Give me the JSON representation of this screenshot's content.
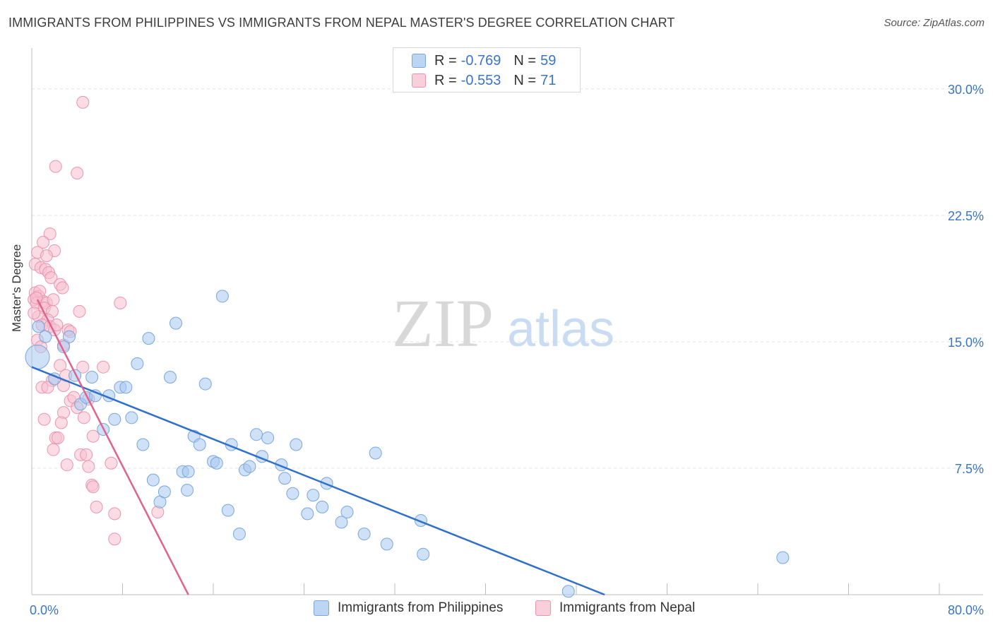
{
  "title": "IMMIGRANTS FROM PHILIPPINES VS IMMIGRANTS FROM NEPAL MASTER'S DEGREE CORRELATION CHART",
  "source": "Source: ZipAtlas.com",
  "watermark": {
    "zip": "ZIP",
    "atlas": "atlas"
  },
  "legend": {
    "series1": {
      "r_label": "R =",
      "r_value": "-0.769",
      "n_label": "N =",
      "n_value": "59"
    },
    "series2": {
      "r_label": "R =",
      "r_value": "-0.553",
      "n_label": "N =",
      "n_value": "71"
    }
  },
  "colors": {
    "blue_fill": "#a8c8f0",
    "blue_stroke": "#7aa6dc",
    "blue_line": "#2f6fcd",
    "pink_fill": "#f7bfd0",
    "pink_stroke": "#ec93b0",
    "pink_line": "#e0628f",
    "tick_text": "#3a74c9",
    "grid": "#e3e3e3"
  },
  "chart_data": {
    "type": "scatter",
    "title": "IMMIGRANTS FROM PHILIPPINES VS IMMIGRANTS FROM NEPAL MASTER'S DEGREE CORRELATION CHART",
    "xlabel": "",
    "ylabel": "Master's Degree",
    "xlim": [
      0,
      80
    ],
    "ylim": [
      0,
      32
    ],
    "x_tick_labels": [
      "0.0%",
      "80.0%"
    ],
    "y_ticks": [
      7.5,
      15.0,
      22.5,
      30.0
    ],
    "y_tick_labels": [
      "7.5%",
      "15.0%",
      "22.5%",
      "30.0%"
    ],
    "series": [
      {
        "name": "Immigrants from Philippines",
        "color": "blue",
        "points": [
          [
            0.5,
            14.1
          ],
          [
            0.6,
            15.9
          ],
          [
            1.2,
            15.3
          ],
          [
            2.0,
            12.8
          ],
          [
            3.3,
            15.3
          ],
          [
            2.8,
            14.7
          ],
          [
            3.8,
            13.0
          ],
          [
            4.3,
            11.3
          ],
          [
            4.8,
            11.7
          ],
          [
            5.3,
            12.9
          ],
          [
            5.6,
            11.8
          ],
          [
            6.3,
            9.8
          ],
          [
            6.8,
            11.8
          ],
          [
            7.3,
            10.4
          ],
          [
            7.8,
            12.3
          ],
          [
            8.3,
            12.3
          ],
          [
            8.8,
            10.5
          ],
          [
            9.3,
            13.7
          ],
          [
            9.8,
            8.9
          ],
          [
            10.3,
            15.2
          ],
          [
            10.7,
            6.8
          ],
          [
            11.3,
            5.5
          ],
          [
            11.7,
            6.1
          ],
          [
            12.2,
            12.9
          ],
          [
            12.7,
            16.1
          ],
          [
            13.3,
            7.3
          ],
          [
            13.8,
            7.3
          ],
          [
            14.3,
            9.4
          ],
          [
            14.8,
            8.9
          ],
          [
            15.3,
            12.5
          ],
          [
            16.0,
            7.9
          ],
          [
            16.3,
            7.8
          ],
          [
            16.8,
            17.7
          ],
          [
            17.3,
            5.0
          ],
          [
            17.6,
            8.9
          ],
          [
            18.3,
            3.6
          ],
          [
            18.8,
            7.4
          ],
          [
            19.2,
            7.6
          ],
          [
            19.8,
            9.5
          ],
          [
            20.3,
            8.2
          ],
          [
            20.8,
            9.3
          ],
          [
            22.0,
            7.7
          ],
          [
            22.3,
            6.9
          ],
          [
            23.0,
            6.0
          ],
          [
            23.3,
            8.9
          ],
          [
            24.3,
            4.8
          ],
          [
            24.8,
            5.9
          ],
          [
            25.6,
            5.2
          ],
          [
            26.0,
            6.6
          ],
          [
            27.3,
            4.3
          ],
          [
            27.8,
            4.9
          ],
          [
            29.3,
            3.6
          ],
          [
            31.3,
            3.0
          ],
          [
            30.3,
            8.4
          ],
          [
            34.3,
            4.4
          ],
          [
            34.5,
            2.4
          ],
          [
            47.3,
            0.2
          ],
          [
            66.2,
            2.2
          ],
          [
            13.7,
            6.2
          ]
        ]
      },
      {
        "name": "Immigrants from Nepal",
        "color": "pink",
        "points": [
          [
            4.5,
            29.2
          ],
          [
            2.1,
            25.4
          ],
          [
            4.0,
            25.0
          ],
          [
            1.6,
            21.4
          ],
          [
            1.0,
            20.9
          ],
          [
            0.5,
            20.3
          ],
          [
            2.0,
            20.4
          ],
          [
            1.3,
            20.1
          ],
          [
            0.3,
            19.6
          ],
          [
            0.8,
            19.4
          ],
          [
            1.2,
            19.3
          ],
          [
            1.5,
            19.1
          ],
          [
            1.7,
            18.8
          ],
          [
            2.5,
            18.4
          ],
          [
            2.7,
            18.2
          ],
          [
            0.3,
            17.9
          ],
          [
            0.6,
            17.7
          ],
          [
            0.2,
            17.5
          ],
          [
            0.4,
            17.3
          ],
          [
            1.0,
            17.4
          ],
          [
            1.3,
            17.3
          ],
          [
            1.1,
            17.0
          ],
          [
            1.8,
            16.8
          ],
          [
            4.2,
            16.8
          ],
          [
            7.8,
            17.3
          ],
          [
            0.6,
            16.5
          ],
          [
            1.4,
            16.3
          ],
          [
            0.9,
            16.0
          ],
          [
            1.6,
            15.9
          ],
          [
            2.0,
            15.7
          ],
          [
            3.2,
            15.7
          ],
          [
            0.5,
            15.1
          ],
          [
            2.8,
            14.8
          ],
          [
            0.8,
            14.7
          ],
          [
            2.5,
            13.6
          ],
          [
            4.5,
            13.5
          ],
          [
            6.3,
            13.5
          ],
          [
            3.0,
            13.0
          ],
          [
            1.8,
            12.7
          ],
          [
            0.9,
            12.3
          ],
          [
            1.4,
            12.3
          ],
          [
            2.8,
            12.4
          ],
          [
            5.0,
            11.6
          ],
          [
            3.4,
            11.5
          ],
          [
            3.7,
            11.7
          ],
          [
            4.0,
            11.1
          ],
          [
            2.8,
            10.8
          ],
          [
            2.6,
            10.2
          ],
          [
            4.6,
            10.5
          ],
          [
            1.1,
            10.4
          ],
          [
            5.4,
            9.4
          ],
          [
            2.1,
            9.3
          ],
          [
            2.3,
            9.3
          ],
          [
            1.9,
            8.6
          ],
          [
            4.3,
            8.3
          ],
          [
            4.8,
            8.3
          ],
          [
            7.0,
            7.8
          ],
          [
            3.1,
            7.7
          ],
          [
            5.0,
            7.6
          ],
          [
            5.3,
            6.5
          ],
          [
            5.4,
            6.4
          ],
          [
            5.7,
            5.2
          ],
          [
            7.3,
            4.8
          ],
          [
            11.1,
            4.9
          ],
          [
            7.3,
            3.3
          ],
          [
            0.2,
            16.7
          ],
          [
            0.7,
            18.0
          ],
          [
            1.9,
            17.5
          ],
          [
            2.2,
            16.0
          ],
          [
            3.4,
            15.6
          ],
          [
            0.4,
            17.6
          ]
        ]
      }
    ],
    "trend_lines": [
      {
        "series": "Immigrants from Philippines",
        "x": [
          0,
          50.5
        ],
        "y": [
          13.5,
          0
        ]
      },
      {
        "series": "Immigrants from Nepal",
        "x": [
          0.5,
          13.8
        ],
        "y": [
          17.5,
          0
        ]
      }
    ]
  },
  "bottom_legend": {
    "series1_label": "Immigrants from Philippines",
    "series2_label": "Immigrants from Nepal"
  }
}
